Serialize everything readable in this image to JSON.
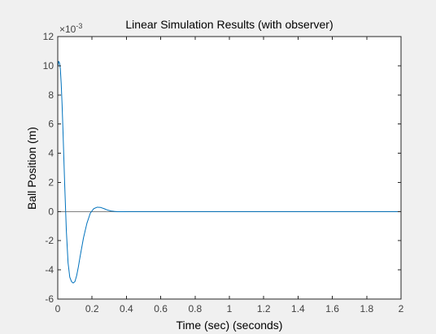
{
  "chart_data": {
    "type": "line",
    "title": "Linear Simulation Results (with observer)",
    "xlabel": "Time (sec) (seconds)",
    "ylabel": "Ball Position (m)",
    "exponent_label": "×10",
    "exponent_power": "-3",
    "xlim": [
      0,
      2
    ],
    "ylim": [
      -0.006,
      0.012
    ],
    "xticks": [
      0,
      0.2,
      0.4,
      0.6,
      0.8,
      1,
      1.2,
      1.4,
      1.6,
      1.8,
      2
    ],
    "xtick_labels": [
      "0",
      "0.2",
      "0.4",
      "0.6",
      "0.8",
      "1",
      "1.2",
      "1.4",
      "1.6",
      "1.8",
      "2"
    ],
    "yticks": [
      -0.006,
      -0.004,
      -0.002,
      0,
      0.002,
      0.004,
      0.006,
      0.008,
      0.01,
      0.012
    ],
    "ytick_labels": [
      "-6",
      "-4",
      "-2",
      "0",
      "2",
      "4",
      "6",
      "8",
      "10",
      "12"
    ],
    "grid": false,
    "reference_line": {
      "y": 0,
      "color": "#808080"
    },
    "series": [
      {
        "color": "#0072bd",
        "x": [
          0,
          0.005,
          0.01,
          0.015,
          0.02,
          0.025,
          0.03,
          0.04,
          0.05,
          0.06,
          0.07,
          0.08,
          0.09,
          0.1,
          0.11,
          0.12,
          0.13,
          0.15,
          0.17,
          0.19,
          0.21,
          0.23,
          0.25,
          0.27,
          0.29,
          0.31,
          0.33,
          0.35,
          0.38,
          0.42,
          0.5,
          0.7,
          1.0,
          1.5,
          2.0
        ],
        "y": [
          0.0099,
          0.0103,
          0.0102,
          0.0098,
          0.0088,
          0.0074,
          0.0057,
          0.002,
          -0.0013,
          -0.0035,
          -0.0045,
          -0.0048,
          -0.0049,
          -0.0048,
          -0.0044,
          -0.0038,
          -0.0031,
          -0.0018,
          -0.0008,
          -0.0001,
          0.0002,
          0.0003,
          0.00028,
          0.0002,
          0.0001,
          4e-05,
          1e-05,
          -1e-05,
          -1e-05,
          0,
          0,
          0,
          0,
          0,
          0
        ]
      }
    ]
  }
}
